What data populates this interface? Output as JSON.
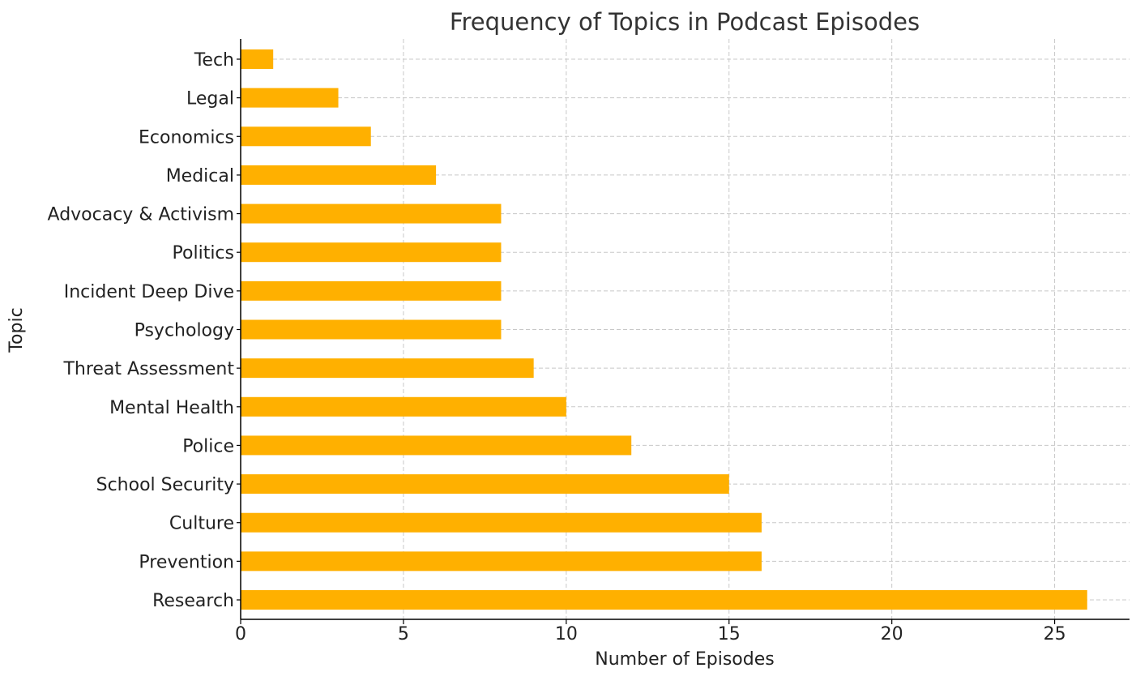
{
  "chart_data": {
    "type": "bar",
    "orientation": "horizontal",
    "title": "Frequency of Topics in Podcast Episodes",
    "xlabel": "Number of Episodes",
    "ylabel": "Topic",
    "categories": [
      "Research",
      "Prevention",
      "Culture",
      "School Security",
      "Police",
      "Mental Health",
      "Threat Assessment",
      "Psychology",
      "Incident Deep Dive",
      "Politics",
      "Advocacy & Activism",
      "Medical",
      "Economics",
      "Legal",
      "Tech"
    ],
    "values": [
      26,
      16,
      16,
      15,
      12,
      10,
      9,
      8,
      8,
      8,
      8,
      6,
      4,
      3,
      1
    ],
    "xlim": [
      0,
      27.3
    ],
    "xticks": [
      0,
      5,
      10,
      15,
      20,
      25
    ],
    "grid": true,
    "bar_color": "#FFB000"
  }
}
